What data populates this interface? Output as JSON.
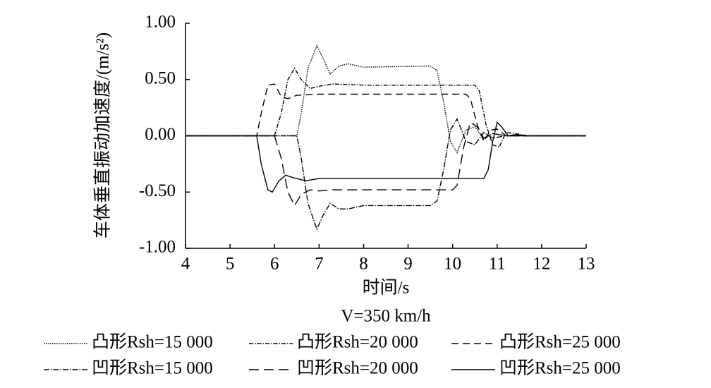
{
  "chart_data": {
    "type": "line",
    "ylabel": "车体垂直振动加速度/(m/s²)",
    "xlabel": "时间/s",
    "subtitle": "V=350 km/h",
    "xlim": [
      4,
      13
    ],
    "xticks": [
      4,
      5,
      6,
      7,
      8,
      9,
      10,
      11,
      12,
      13
    ],
    "ylim": [
      -1,
      1
    ],
    "yticks": [
      {
        "value": 1,
        "label": "1.00"
      },
      {
        "value": 0.5,
        "label": "0.50"
      },
      {
        "value": 0,
        "label": "0.00"
      },
      {
        "value": -0.5,
        "label": "-0.50"
      },
      {
        "value": -1,
        "label": "-1.00"
      }
    ],
    "series": [
      {
        "name": "凸形Rsh=15 000",
        "color": "#000000",
        "dash": "1.5,1.5",
        "x": [
          4,
          6.5,
          6.6,
          6.75,
          6.95,
          7.1,
          7.25,
          7.45,
          7.65,
          8,
          9.5,
          9.65,
          9.8,
          9.95,
          10.1,
          10.3,
          10.5,
          10.7,
          10.9,
          11.2,
          11.6,
          13
        ],
        "values": [
          0,
          0,
          0.2,
          0.6,
          0.8,
          0.68,
          0.55,
          0.62,
          0.64,
          0.61,
          0.62,
          0.58,
          0.3,
          -0.05,
          -0.15,
          0.05,
          0.08,
          -0.03,
          0.02,
          0,
          0,
          0
        ]
      },
      {
        "name": "凸形Rsh=20 000",
        "color": "#000000",
        "dash": "6,2,1.5,2",
        "x": [
          4,
          6.0,
          6.15,
          6.3,
          6.45,
          6.6,
          6.8,
          7.0,
          7.3,
          8,
          10.5,
          10.6,
          10.75,
          10.9,
          11.05,
          11.2,
          11.4,
          11.7,
          13
        ],
        "values": [
          0,
          0,
          0.2,
          0.5,
          0.6,
          0.5,
          0.42,
          0.44,
          0.46,
          0.45,
          0.45,
          0.4,
          0.1,
          -0.08,
          -0.1,
          0.03,
          0.02,
          0,
          0
        ]
      },
      {
        "name": "凸形Rsh=25 000",
        "color": "#000000",
        "dash": "10,6",
        "x": [
          4,
          5.6,
          5.7,
          5.85,
          6.0,
          6.15,
          6.3,
          6.5,
          7,
          10.3,
          10.4,
          10.55,
          10.7,
          10.85,
          11.0,
          11.2,
          11.5,
          13
        ],
        "values": [
          0,
          0,
          0.2,
          0.45,
          0.46,
          0.35,
          0.33,
          0.36,
          0.37,
          0.37,
          0.33,
          0.1,
          -0.05,
          0.05,
          0.06,
          0,
          0,
          0
        ]
      },
      {
        "name": "凹形Rsh=15 000",
        "color": "#000000",
        "dash": "8,2,1.5,2",
        "x": [
          4,
          6.5,
          6.6,
          6.75,
          6.95,
          7.1,
          7.25,
          7.45,
          7.65,
          8,
          9.5,
          9.65,
          9.8,
          9.95,
          10.1,
          10.3,
          10.5,
          10.7,
          10.9,
          11.2,
          11.6,
          13
        ],
        "values": [
          0,
          0,
          -0.2,
          -0.6,
          -0.83,
          -0.7,
          -0.6,
          -0.65,
          -0.65,
          -0.62,
          -0.62,
          -0.58,
          -0.3,
          0.05,
          0.15,
          -0.05,
          -0.08,
          0.03,
          -0.02,
          0,
          0,
          0
        ]
      },
      {
        "name": "凹形Rsh=20 000",
        "color": "#000000",
        "dash": "14,7",
        "x": [
          4,
          6.0,
          6.15,
          6.3,
          6.45,
          6.6,
          6.8,
          7.0,
          7.3,
          8,
          10.0,
          10.1,
          10.25,
          10.4,
          10.55,
          10.7,
          10.9,
          11.2,
          13
        ],
        "values": [
          0,
          0,
          -0.2,
          -0.5,
          -0.62,
          -0.52,
          -0.48,
          -0.49,
          -0.48,
          -0.48,
          -0.48,
          -0.44,
          -0.1,
          0.12,
          0.08,
          -0.02,
          0.02,
          0,
          0
        ]
      },
      {
        "name": "凹形Rsh=25 000",
        "color": "#000000",
        "dash": "none",
        "x": [
          4,
          5.6,
          5.7,
          5.85,
          5.95,
          6.1,
          6.25,
          6.4,
          6.7,
          7,
          10.7,
          10.8,
          10.9,
          11.0,
          11.1,
          11.25,
          11.4,
          11.7,
          13
        ],
        "values": [
          0,
          0,
          -0.25,
          -0.48,
          -0.5,
          -0.4,
          -0.35,
          -0.37,
          -0.4,
          -0.38,
          -0.38,
          -0.3,
          -0.05,
          0.12,
          0.08,
          0,
          0.01,
          0,
          0
        ]
      }
    ]
  }
}
